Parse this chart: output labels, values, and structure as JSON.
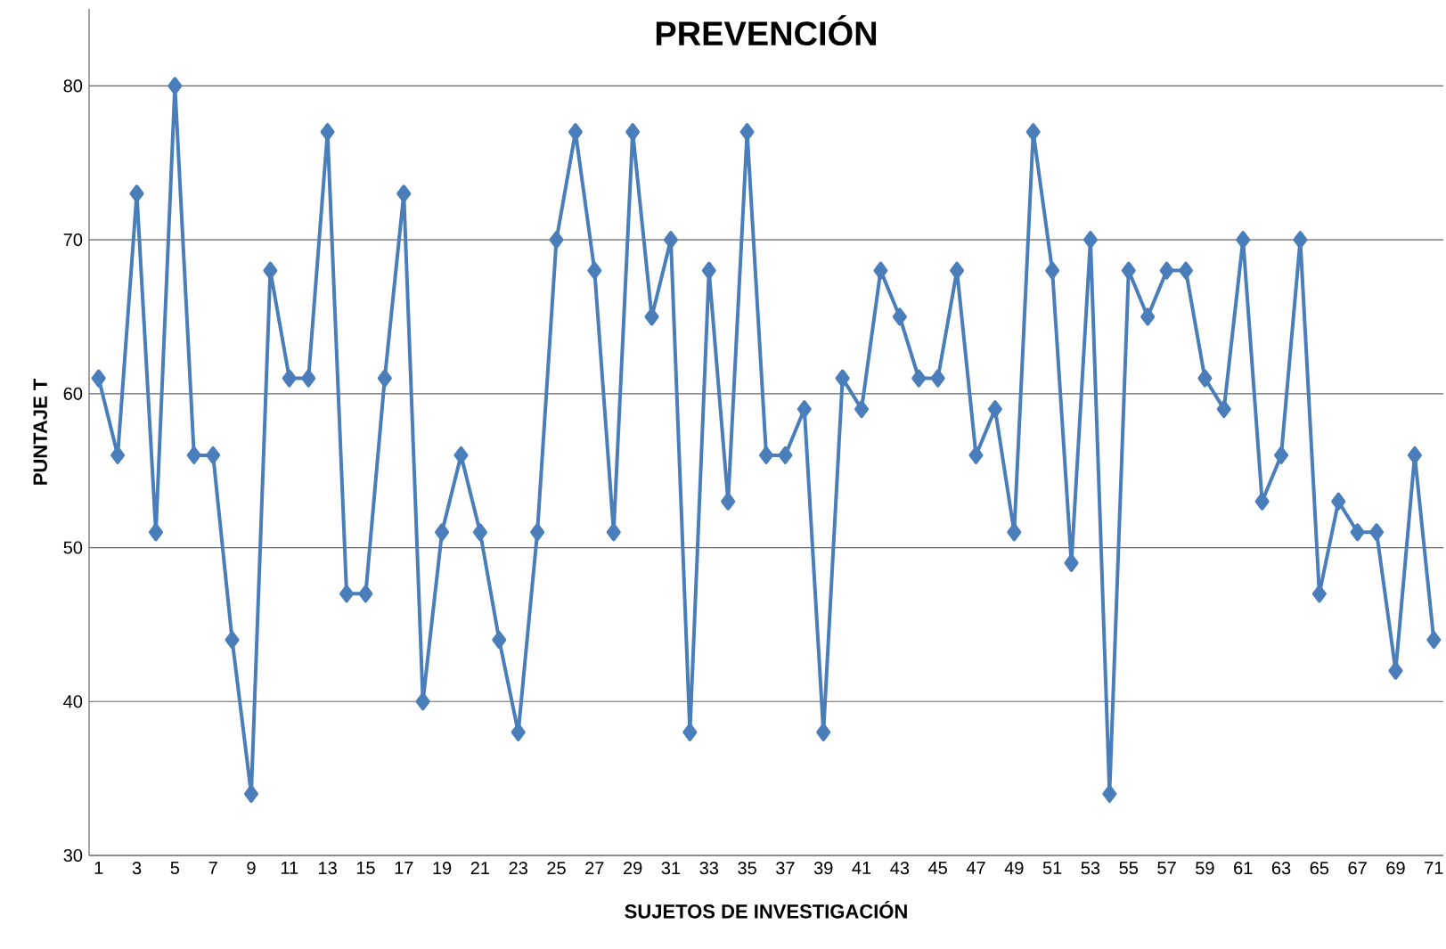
{
  "chart_data": {
    "type": "line",
    "title": "PREVENCIÓN",
    "xlabel": "SUJETOS DE INVESTIGACIÓN",
    "ylabel": "PUNTAJE T",
    "categories": [
      "1",
      null,
      "3",
      null,
      "5",
      null,
      "7",
      null,
      "9",
      null,
      "11",
      null,
      "13",
      null,
      "15",
      null,
      "17",
      null,
      "19",
      null,
      "21",
      null,
      "23",
      null,
      "25",
      null,
      "27",
      null,
      "29",
      null,
      "31",
      null,
      "33",
      null,
      "35",
      null,
      "37",
      null,
      "39",
      null,
      "41",
      null,
      "43",
      null,
      "45",
      null,
      "47",
      null,
      "49",
      null,
      "51",
      null,
      "53",
      null,
      "55",
      null,
      "57",
      null,
      "59",
      null,
      "61",
      null,
      "63",
      null,
      "65",
      null,
      "67",
      null,
      "69",
      null,
      "71"
    ],
    "values": [
      61,
      56,
      73,
      51,
      80,
      56,
      56,
      44,
      34,
      68,
      61,
      61,
      77,
      47,
      47,
      61,
      73,
      40,
      51,
      56,
      51,
      44,
      38,
      51,
      70,
      77,
      68,
      51,
      77,
      65,
      70,
      38,
      68,
      53,
      77,
      56,
      56,
      59,
      38,
      61,
      59,
      68,
      65,
      61,
      61,
      68,
      56,
      59,
      51,
      77,
      68,
      49,
      70,
      34,
      68,
      65,
      68,
      68,
      61,
      59,
      70,
      53,
      56,
      70,
      47,
      53,
      51,
      51,
      42,
      56,
      44
    ],
    "color": "#4a7ebb",
    "ylim": [
      30,
      85
    ],
    "yticks": [
      30,
      40,
      50,
      60,
      70,
      80
    ],
    "grid": "y",
    "marker": "diamond",
    "line_style": "solid"
  }
}
